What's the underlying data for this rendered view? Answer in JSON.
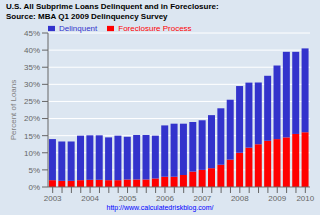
{
  "chart_data": {
    "type": "bar",
    "stacked": true,
    "title": "U.S. All Subprime Loans Delinquent and in Foreclosure:",
    "subtitle": "Source: MBA Q1 2009 Delinquency Survey",
    "ylabel": "Percent of Loans",
    "annotations": [
      "http://www.calculatedriskblog.com/"
    ],
    "categories": [
      "2003",
      null,
      null,
      null,
      "2004",
      null,
      null,
      null,
      "2005",
      null,
      null,
      null,
      "2006",
      null,
      null,
      null,
      "2007",
      null,
      null,
      null,
      "2008",
      null,
      null,
      null,
      "2009",
      null,
      null,
      "2010"
    ],
    "series": [
      {
        "name": "Foreclosure Process",
        "color": "#ff0000",
        "values": [
          2.0,
          1.8,
          1.8,
          2.0,
          2.1,
          2.1,
          2.0,
          2.0,
          2.2,
          2.2,
          2.2,
          2.5,
          3.0,
          3.0,
          3.5,
          4.5,
          5.0,
          5.5,
          6.5,
          8.0,
          10.0,
          11.5,
          12.5,
          13.5,
          14.0,
          14.5,
          15.5,
          16.0
        ]
      },
      {
        "name": "Delinquent",
        "color": "#3333cc",
        "values": [
          12.0,
          11.5,
          11.5,
          13.0,
          13.0,
          13.0,
          12.5,
          13.0,
          12.5,
          13.0,
          13.0,
          12.5,
          15.0,
          15.5,
          15.0,
          14.5,
          14.5,
          15.5,
          16.5,
          17.5,
          19.5,
          19.0,
          18.0,
          19.0,
          21.5,
          25.0,
          24.0,
          24.5
        ]
      }
    ],
    "ylim": [
      0,
      45
    ],
    "yticks": [
      {
        "value": 0,
        "label": "0%"
      },
      {
        "value": 5,
        "label": "5%"
      },
      {
        "value": 10,
        "label": "10%"
      },
      {
        "value": 15,
        "label": "15%"
      },
      {
        "value": 20,
        "label": "20%"
      },
      {
        "value": 25,
        "label": "25%"
      },
      {
        "value": 30,
        "label": "30%"
      },
      {
        "value": 35,
        "label": "35%"
      },
      {
        "value": 40,
        "label": "40%"
      },
      {
        "value": 45,
        "label": "45%"
      }
    ],
    "grid": true,
    "legend": "upper left"
  }
}
